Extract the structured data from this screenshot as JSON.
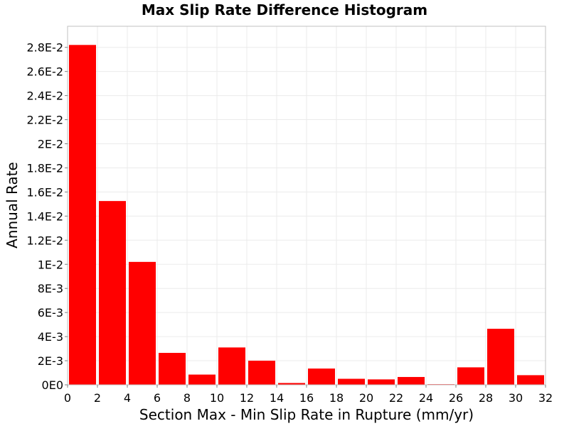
{
  "chart_data": {
    "type": "bar",
    "title": "Max Slip Rate Difference Histogram",
    "xlabel": "Section Max - Min Slip Rate in Rupture (mm/yr)",
    "ylabel": "Annual Rate",
    "bin_width": 2,
    "bins": [
      {
        "x0": 0,
        "x1": 2,
        "value": 0.0282
      },
      {
        "x0": 2,
        "x1": 4,
        "value": 0.01525
      },
      {
        "x0": 4,
        "x1": 6,
        "value": 0.0102
      },
      {
        "x0": 6,
        "x1": 8,
        "value": 0.00265
      },
      {
        "x0": 8,
        "x1": 10,
        "value": 0.00085
      },
      {
        "x0": 10,
        "x1": 12,
        "value": 0.0031
      },
      {
        "x0": 12,
        "x1": 14,
        "value": 0.002
      },
      {
        "x0": 14,
        "x1": 16,
        "value": 0.00015
      },
      {
        "x0": 16,
        "x1": 18,
        "value": 0.00135
      },
      {
        "x0": 18,
        "x1": 20,
        "value": 0.0005
      },
      {
        "x0": 20,
        "x1": 22,
        "value": 0.00045
      },
      {
        "x0": 22,
        "x1": 24,
        "value": 0.00065
      },
      {
        "x0": 24,
        "x1": 26,
        "value": 5e-05
      },
      {
        "x0": 26,
        "x1": 28,
        "value": 0.00145
      },
      {
        "x0": 28,
        "x1": 30,
        "value": 0.00465
      },
      {
        "x0": 30,
        "x1": 32,
        "value": 0.0008
      }
    ],
    "xlim": [
      0,
      32
    ],
    "ylim": [
      0,
      0.02975
    ],
    "x_ticks": [
      "0",
      "2",
      "4",
      "6",
      "8",
      "10",
      "12",
      "14",
      "16",
      "18",
      "20",
      "22",
      "24",
      "26",
      "28",
      "30",
      "32"
    ],
    "y_ticks": [
      {
        "value": 0,
        "label": "0E0"
      },
      {
        "value": 0.002,
        "label": "2E-3"
      },
      {
        "value": 0.004,
        "label": "4E-3"
      },
      {
        "value": 0.006,
        "label": "6E-3"
      },
      {
        "value": 0.008,
        "label": "8E-3"
      },
      {
        "value": 0.01,
        "label": "1E-2"
      },
      {
        "value": 0.012,
        "label": "1.2E-2"
      },
      {
        "value": 0.014,
        "label": "1.4E-2"
      },
      {
        "value": 0.016,
        "label": "1.6E-2"
      },
      {
        "value": 0.018,
        "label": "1.8E-2"
      },
      {
        "value": 0.02,
        "label": "2E-2"
      },
      {
        "value": 0.022,
        "label": "2.2E-2"
      },
      {
        "value": 0.024,
        "label": "2.4E-2"
      },
      {
        "value": 0.026,
        "label": "2.6E-2"
      },
      {
        "value": 0.028,
        "label": "2.8E-2"
      }
    ],
    "grid": true,
    "colors": {
      "bar": "#ff0000",
      "grid": "#ebebeb",
      "frame": "#c0c0c0"
    }
  }
}
